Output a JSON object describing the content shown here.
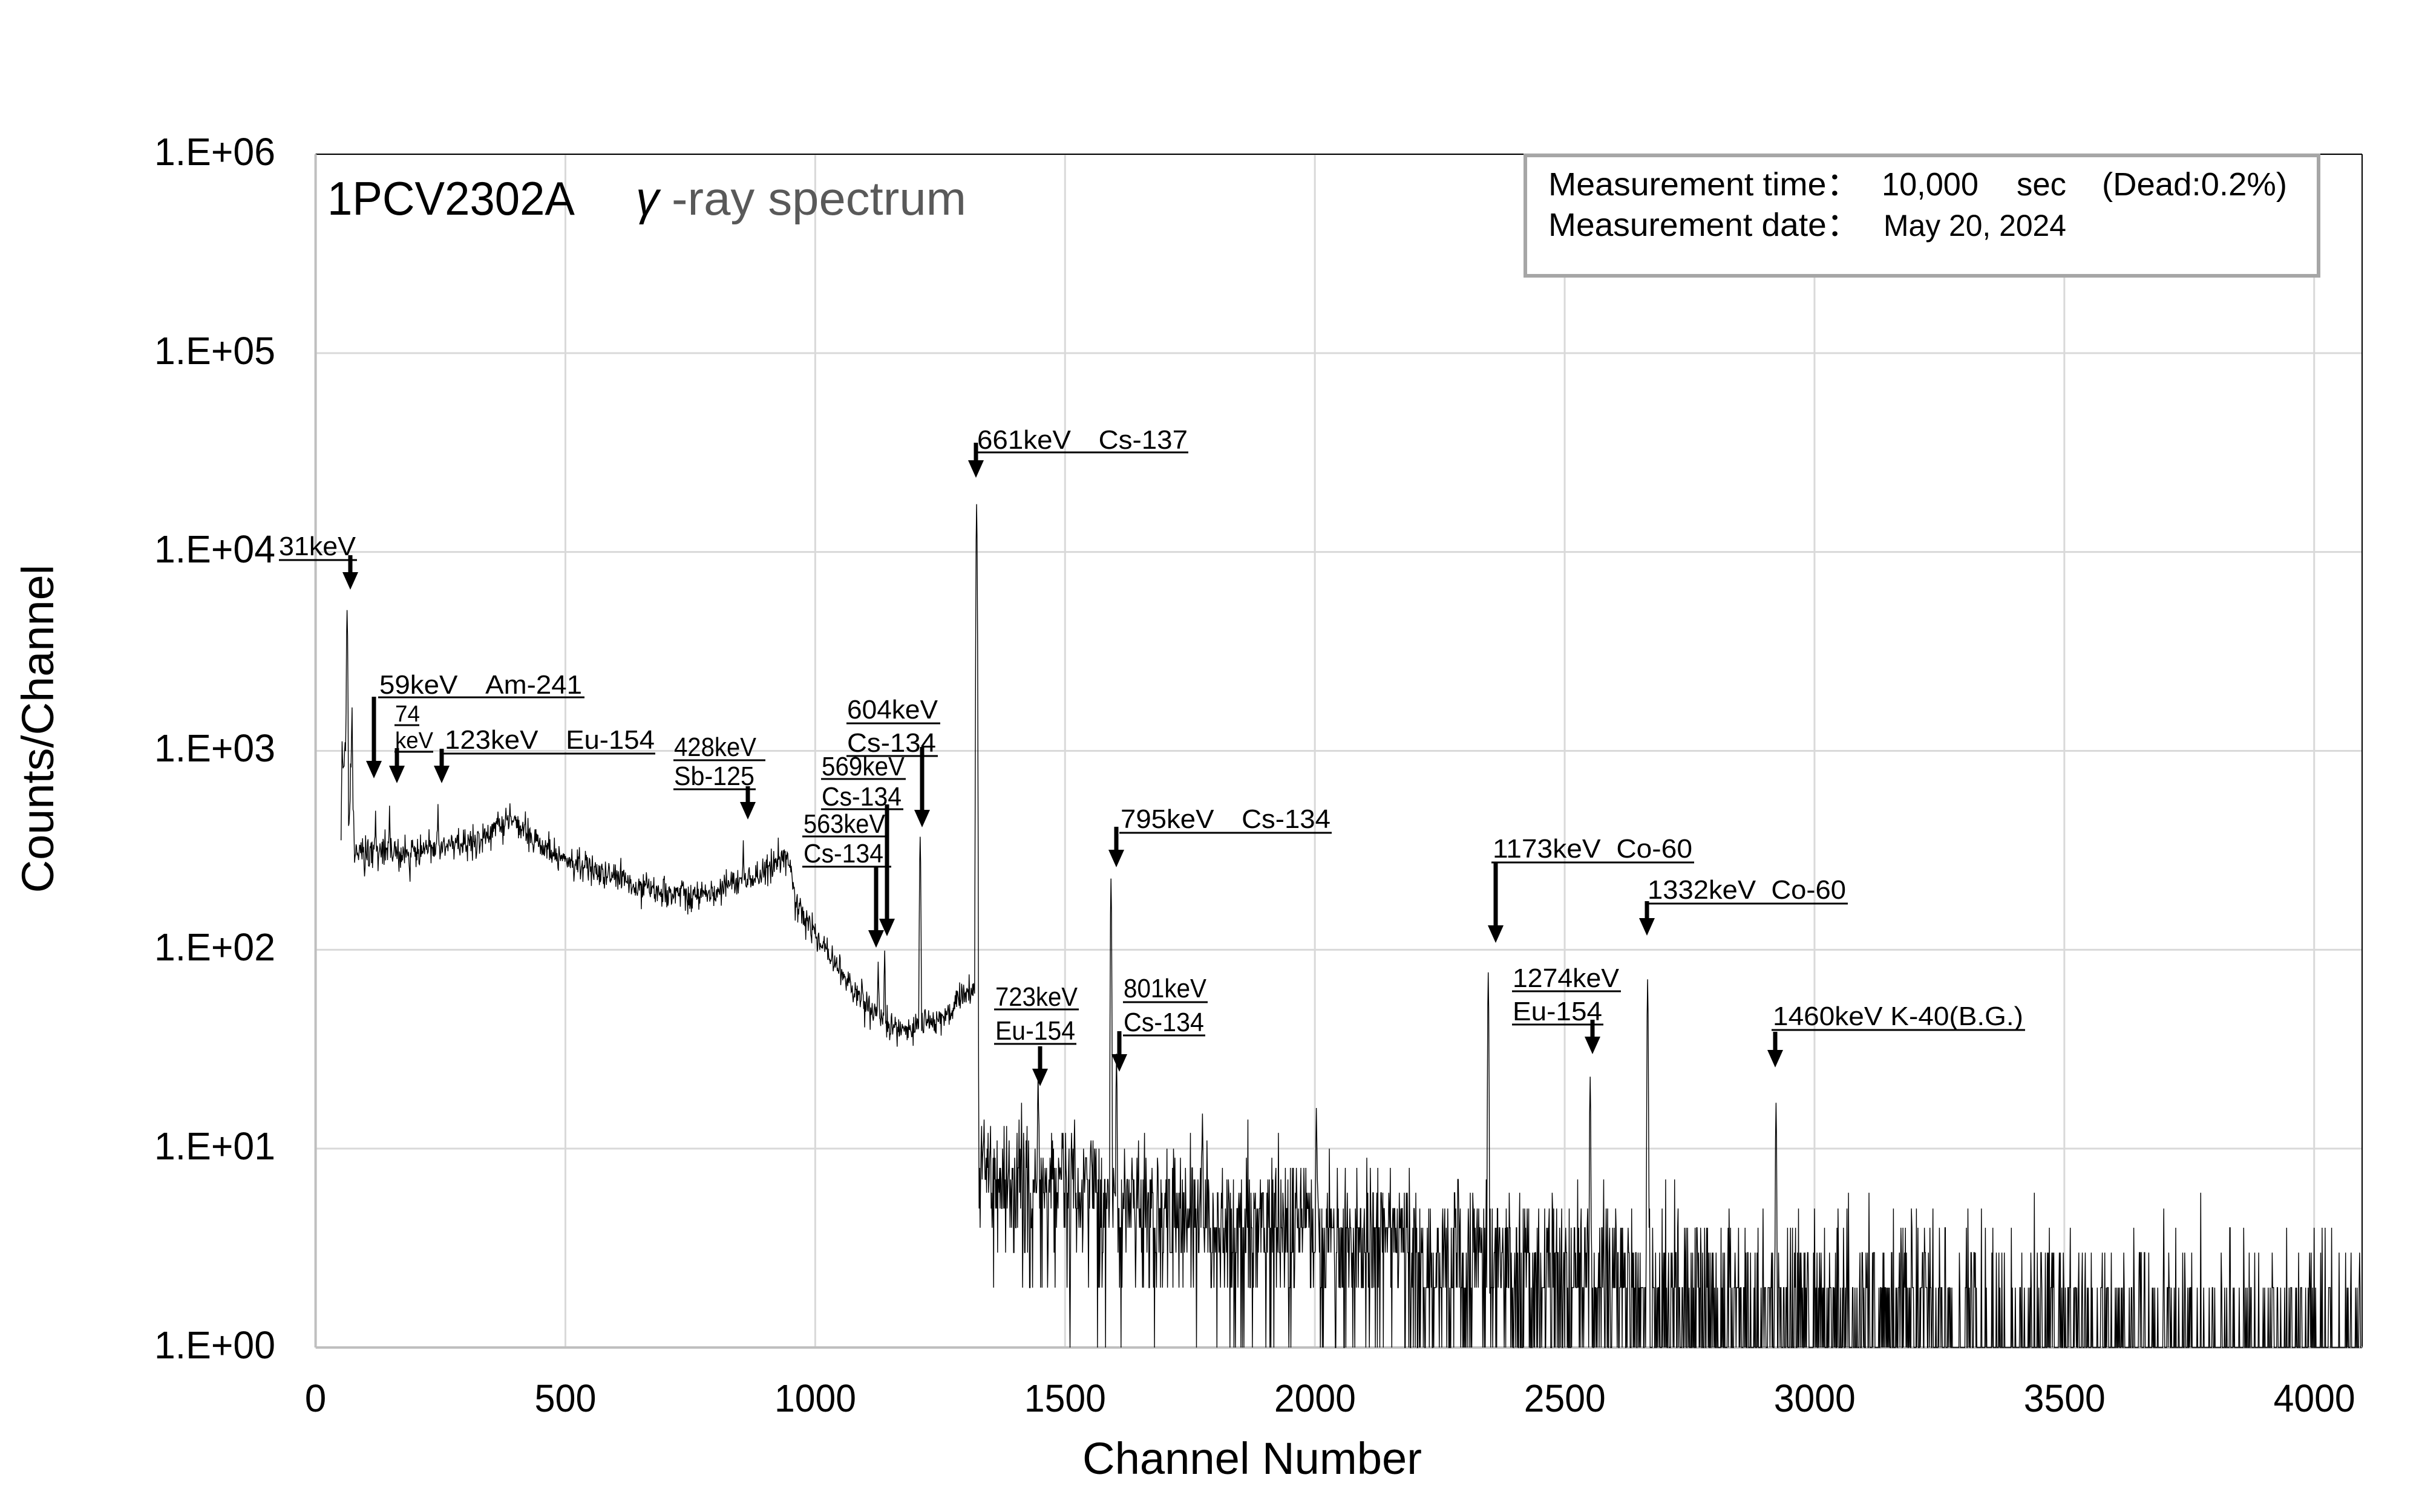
{
  "chart_data": {
    "type": "line",
    "title": {
      "sample_id": "1PCV2302A",
      "gamma": "γ",
      "suffix": "-ray spectrum"
    },
    "xlabel": "Channel Number",
    "ylabel": "Counts/Channel",
    "x_range": [
      0,
      4096
    ],
    "y_range": [
      1,
      1000000
    ],
    "y_scale": "log",
    "grid": true,
    "x_ticks": [
      "0",
      "500",
      "1000",
      "1500",
      "2000",
      "2500",
      "3000",
      "3500",
      "4000"
    ],
    "y_ticks": [
      "1.E+00",
      "1.E+01",
      "1.E+02",
      "1.E+03",
      "1.E+04",
      "1.E+05",
      "1.E+06"
    ],
    "info_box": {
      "time_label": "Measurement time：",
      "time_value": "10,000",
      "time_unit": "sec",
      "dead_time": "(Dead:0.2%)",
      "date_label": "Measurement date：",
      "date_value": "May 20, 2024",
      "border_color": "#a6a6a6"
    },
    "series": [
      {
        "name": "spectrum",
        "color": "#000000",
        "start_channel": 51,
        "end_channel": 4095,
        "continuum": [
          [
            51,
            365
          ],
          [
            53,
            1200
          ],
          [
            56,
            800
          ],
          [
            59,
            1150
          ],
          [
            61,
            900
          ],
          [
            66,
            450
          ],
          [
            69,
            600
          ],
          [
            71,
            900
          ],
          [
            73,
            1540
          ],
          [
            75,
            500
          ],
          [
            78,
            300
          ],
          [
            100,
            300
          ],
          [
            150,
            305
          ],
          [
            200,
            315
          ],
          [
            250,
            325
          ],
          [
            300,
            345
          ],
          [
            340,
            370
          ],
          [
            370,
            420
          ],
          [
            385,
            450
          ],
          [
            400,
            430
          ],
          [
            450,
            340
          ],
          [
            500,
            285
          ],
          [
            550,
            255
          ],
          [
            600,
            232
          ],
          [
            650,
            205
          ],
          [
            700,
            192
          ],
          [
            750,
            186
          ],
          [
            800,
            195
          ],
          [
            850,
            215
          ],
          [
            900,
            250
          ],
          [
            935,
            280
          ],
          [
            950,
            275
          ],
          [
            960,
            170
          ],
          [
            975,
            150
          ],
          [
            1000,
            120
          ],
          [
            1040,
            85
          ],
          [
            1080,
            62
          ],
          [
            1120,
            48
          ],
          [
            1160,
            40
          ],
          [
            1200,
            40
          ],
          [
            1250,
            46
          ],
          [
            1290,
            55
          ],
          [
            1318,
            65
          ]
        ],
        "background": [
          [
            1327,
            7
          ],
          [
            1550,
            6.5
          ],
          [
            1590,
            5
          ],
          [
            1800,
            4.5
          ],
          [
            2000,
            4
          ],
          [
            2300,
            3
          ],
          [
            2600,
            2.2
          ],
          [
            2900,
            1.6
          ],
          [
            3300,
            1.2
          ],
          [
            3700,
            1.0
          ],
          [
            4096,
            0.9
          ]
        ]
      }
    ],
    "peaks": [
      {
        "channel": 63,
        "counts": 5100,
        "lines": [
          "31keV"
        ]
      },
      {
        "channel": 120,
        "counts": 500,
        "lines": [
          "59keV　Am-241"
        ]
      },
      {
        "channel": 148,
        "counts": 530,
        "lines": [
          "74",
          "keV"
        ]
      },
      {
        "channel": 245,
        "counts": 540,
        "lines": [
          "123keV　Eu-154"
        ]
      },
      {
        "channel": 856,
        "counts": 355,
        "lines": [
          "428keV",
          "Sb-125"
        ]
      },
      {
        "channel": 1126,
        "counts": 87,
        "lines": [
          "563keV",
          "Cs-134"
        ]
      },
      {
        "channel": 1139,
        "counts": 99,
        "lines": [
          "569keV",
          "Cs-134"
        ]
      },
      {
        "channel": 1210,
        "counts": 370,
        "lines": [
          "604keV",
          "Cs-134"
        ]
      },
      {
        "channel": 1323,
        "counts": 17400,
        "lines": [
          "661keV　Cs-137"
        ]
      },
      {
        "channel": 1446,
        "counts": 24,
        "lines": [
          "723keV",
          "Eu-154"
        ]
      },
      {
        "channel": 1592,
        "counts": 228,
        "lines": [
          "795keV　Cs-134"
        ]
      },
      {
        "channel": 1603,
        "counts": 30,
        "lines": [
          "801keV",
          "Cs-134"
        ]
      },
      {
        "channel": 2347,
        "counts": 77,
        "lines": [
          "1173keV  Co-60"
        ]
      },
      {
        "channel": 2551,
        "counts": 23,
        "lines": [
          "1274keV",
          "Eu-154"
        ]
      },
      {
        "channel": 2666,
        "counts": 71,
        "lines": [
          "1332keV  Co-60"
        ]
      },
      {
        "channel": 2923,
        "counts": 17,
        "lines": [
          "1460keV K-40(B.G.)"
        ]
      }
    ],
    "minor_peaks": [
      [
        1519,
        14
      ],
      [
        1775,
        15
      ],
      [
        2003,
        16
      ]
    ]
  }
}
